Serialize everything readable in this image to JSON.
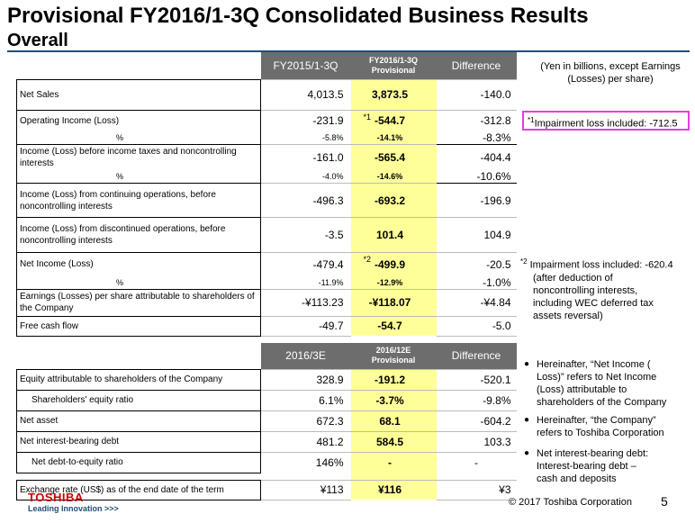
{
  "title": "Provisional FY2016/1-3Q Consolidated Business Results",
  "subtitle": "Overall",
  "units_note": "(Yen in billions, except Earnings (Losses) per share)",
  "table1": {
    "headers": {
      "col1": "FY2015/1-3Q",
      "col2_line1": "FY2016/1-3Q",
      "col2_line2": "Provisional",
      "col3": "Difference"
    },
    "rows": [
      {
        "label": "Net Sales",
        "a": "4,013.5",
        "b": "3,873.5",
        "c": "-140.0"
      },
      {
        "label": "Operating Income (Loss)",
        "a": "-231.9",
        "b": "-544.7",
        "star": "*1",
        "c": "-312.8",
        "pct_label": "%",
        "pa": "-5.8%",
        "pb": "-14.1%",
        "pc": "-8.3%"
      },
      {
        "label": "Income (Loss) before income taxes and noncontrolling interests",
        "a": "-161.0",
        "b": "-565.4",
        "c": "-404.4",
        "pct_label": "%",
        "pa": "-4.0%",
        "pb": "-14.6%",
        "pc": "-10.6%"
      },
      {
        "label": "Income (Loss) from continuing operations, before noncontrolling interests",
        "a": "-496.3",
        "b": "-693.2",
        "c": "-196.9"
      },
      {
        "label": "Income (Loss) from discontinued operations, before noncontrolling interests",
        "a": "-3.5",
        "b": "101.4",
        "c": "104.9"
      },
      {
        "label": "Net Income (Loss)",
        "a": "-479.4",
        "b": "-499.9",
        "star": "*2",
        "c": "-20.5",
        "pct_label": "%",
        "pa": "-11.9%",
        "pb": "-12.9%",
        "pc": "-1.0%"
      },
      {
        "label": "Earnings (Losses) per share attributable to shareholders of the Company",
        "a": "-¥113.23",
        "b": "-¥118.07",
        "c": "-¥4.84"
      },
      {
        "label": "Free cash flow",
        "a": "-49.7",
        "b": "-54.7",
        "c": "-5.0"
      }
    ]
  },
  "table2": {
    "headers": {
      "col1": "2016/3E",
      "col2_line1": "2016/12E",
      "col2_line2": "Provisional",
      "col3": "Difference"
    },
    "rows": [
      {
        "label": "Equity attributable to shareholders of the Company",
        "a": "328.9",
        "b": "-191.2",
        "c": "-520.1"
      },
      {
        "label": "Shareholders' equity ratio",
        "a": "6.1%",
        "b": "-3.7%",
        "c": "-9.8%"
      },
      {
        "label": "Net asset",
        "a": "672.3",
        "b": "68.1",
        "c": "-604.2"
      },
      {
        "label": "Net interest-bearing debt",
        "a": "481.2",
        "b": "584.5",
        "c": "103.3"
      },
      {
        "label": "Net debt-to-equity ratio",
        "a": "146%",
        "b": "-",
        "c": "-"
      },
      {
        "label": "Exchange rate (US$) as of the end date of the term",
        "a": "¥113",
        "b": "¥116",
        "c": "¥3"
      }
    ]
  },
  "note1": {
    "mark": "*1",
    "text": "Impairment loss included: -712.5"
  },
  "note2": {
    "mark": "*2",
    "line1": "Impairment loss included: -620.4",
    "line2": "(after deduction of",
    "line3": "noncontrolling interests,",
    "line4": "including WEC deferred tax",
    "line5": "assets reversal)"
  },
  "bullets": [
    {
      "line1": "Hereinafter, “Net Income (",
      "line2": "Loss)” refers to Net Income",
      "line3": "(Loss) attributable to",
      "line4": "shareholders of the Company"
    },
    {
      "line1": "Hereinafter, “the Company”",
      "line2": "refers to Toshiba Corporation"
    },
    {
      "line1": "Net interest-bearing debt:",
      "line2": "Interest-bearing debt –",
      "line3": "cash and deposits"
    }
  ],
  "logo": {
    "brand": "TOSHIBA",
    "tagline": "Leading Innovation >>>"
  },
  "copyright": "© 2017 Toshiba Corporation",
  "page_number": "5",
  "colors": {
    "header_bg": "#6d6d6d",
    "highlight": "#ffff99",
    "note_box": "#e040e0",
    "logo_red": "#cc0000",
    "rule": "#1f4e79"
  }
}
